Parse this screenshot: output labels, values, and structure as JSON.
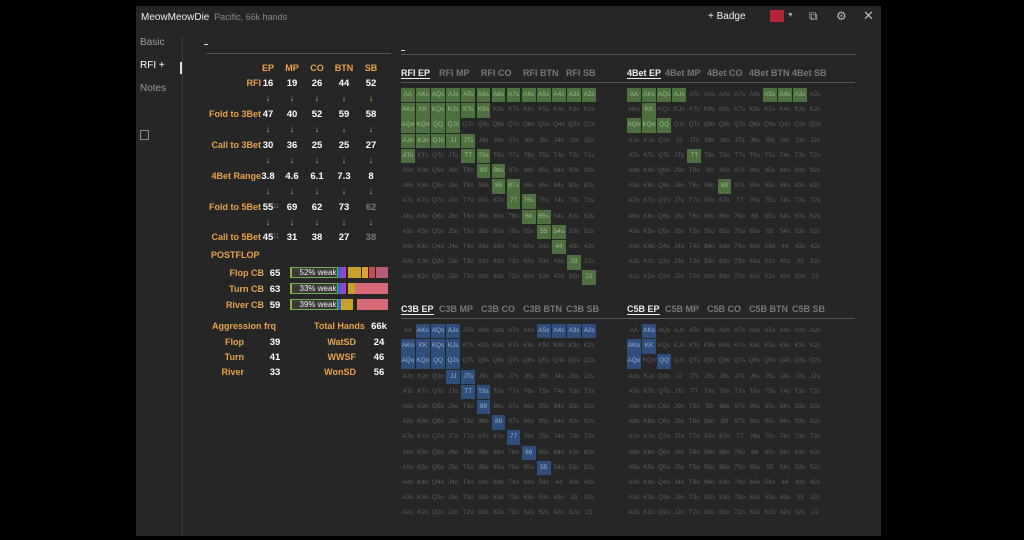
{
  "title": {
    "name": "MeowMeowDie",
    "subtitle": "Pacific, 66k hands"
  },
  "toolbar": {
    "badge_label": "+ Badge",
    "badge_color": "#b22633",
    "icons": [
      "copy-icon",
      "gear-icon",
      "close-icon"
    ]
  },
  "sidebar": {
    "items": [
      {
        "label": "Basic"
      },
      {
        "label": "RFI +"
      },
      {
        "label": "Notes"
      }
    ],
    "active": "RFI +"
  },
  "preflop": {
    "positions": [
      "EP",
      "MP",
      "CO",
      "BTN",
      "SB"
    ],
    "rows": [
      {
        "label": "RFI",
        "values": [
          "16",
          "19",
          "26",
          "44",
          "52"
        ]
      },
      {
        "label": "Fold to 3Bet",
        "values": [
          "47",
          "40",
          "52",
          "59",
          "58"
        ]
      },
      {
        "label": "Call to 3Bet",
        "values": [
          "30",
          "36",
          "25",
          "25",
          "27"
        ]
      },
      {
        "label": "4Bet Range",
        "values": [
          "3.8",
          "4.6",
          "6.1",
          "7.3",
          "8"
        ]
      },
      {
        "label": "Fold to 5Bet",
        "values": [
          "55",
          "69",
          "62",
          "73",
          "62"
        ],
        "subs": [
          "11",
          "",
          "",
          "",
          ""
        ],
        "gray": [
          false,
          false,
          false,
          false,
          true
        ]
      },
      {
        "label": "Call to 5Bet",
        "values": [
          "45",
          "31",
          "38",
          "27",
          "38"
        ],
        "subs": [
          "11",
          "",
          "",
          "",
          ""
        ],
        "gray": [
          false,
          false,
          false,
          false,
          true
        ]
      }
    ],
    "arrow": "↓"
  },
  "postflop": {
    "heading": "POSTFLOP",
    "cbets": [
      {
        "label": "Flop CB",
        "value": "65",
        "weak_text": "52% weak"
      },
      {
        "label": "Turn CB",
        "value": "63",
        "weak_text": "33% weak"
      },
      {
        "label": "River CB",
        "value": "59",
        "weak_text": "39% weak"
      }
    ],
    "aggression": {
      "heading": "Aggression frq",
      "rows": [
        {
          "label": "Flop",
          "value": "39"
        },
        {
          "label": "Turn",
          "value": "41"
        },
        {
          "label": "River",
          "value": "33"
        }
      ]
    },
    "totals": {
      "heading": "Total Hands",
      "heading_value": "66k",
      "rows": [
        {
          "label": "WatSD",
          "value": "24"
        },
        {
          "label": "WWSF",
          "value": "46"
        },
        {
          "label": "WonSD",
          "value": "56"
        }
      ]
    }
  },
  "grids": [
    {
      "tabs": [
        "RFI EP",
        "RFI MP",
        "RFI CO",
        "RFI BTN",
        "RFI SB"
      ],
      "selected": "RFI EP",
      "color": "green",
      "highlighted": [
        "AA",
        "AKs",
        "AQs",
        "AJs",
        "ATs",
        "A9s",
        "A8s",
        "A7s",
        "A6s",
        "A5s",
        "A4s",
        "A3s",
        "A2s",
        "AKo",
        "KK",
        "KQs",
        "KJs",
        "KTs",
        "K9s",
        "AQo",
        "KQo",
        "QQ",
        "QJs",
        "AJo",
        "KJo",
        "QJo",
        "JJ",
        "JTs",
        "ATo",
        "TT",
        "T9s",
        "99",
        "98s",
        "88",
        "87s",
        "77",
        "76s",
        "66",
        "65s",
        "55",
        "54s",
        "44",
        "33",
        "22"
      ]
    },
    {
      "tabs": [
        "4Bet EP",
        "4Bet MP",
        "4Bet CO",
        "4Bet BTN",
        "4Bet SB"
      ],
      "selected": "4Bet EP",
      "color": "green",
      "highlighted": [
        "AA",
        "AKs",
        "AQs",
        "AJs",
        "A5s",
        "A4s",
        "A3s",
        "KK",
        "AQo",
        "KQo",
        "QQ",
        "TT",
        "88"
      ]
    },
    {
      "tabs": [
        "C3B EP",
        "C3B MP",
        "C3B CO",
        "C3B BTN",
        "C3B SB"
      ],
      "selected": "C3B EP",
      "color": "blue",
      "highlighted": [
        "AKs",
        "AQs",
        "AJs",
        "A5s",
        "A4s",
        "A3s",
        "A2s",
        "AKo",
        "KK",
        "KQs",
        "KJs",
        "AQo",
        "KQo",
        "QQ",
        "QJs",
        "JJ",
        "JTs",
        "TT",
        "T9s",
        "99",
        "88",
        "77",
        "66",
        "55"
      ]
    },
    {
      "tabs": [
        "C5B EP",
        "C5B MP",
        "C5B CO",
        "C5B BTN",
        "C5B SB"
      ],
      "selected": "C5B EP",
      "color": "blue",
      "highlighted": [
        "AKs",
        "AKo",
        "KK",
        "AQo",
        "QQ"
      ]
    }
  ],
  "ranks": [
    "A",
    "K",
    "Q",
    "J",
    "T",
    "9",
    "8",
    "7",
    "6",
    "5",
    "4",
    "3",
    "2"
  ]
}
